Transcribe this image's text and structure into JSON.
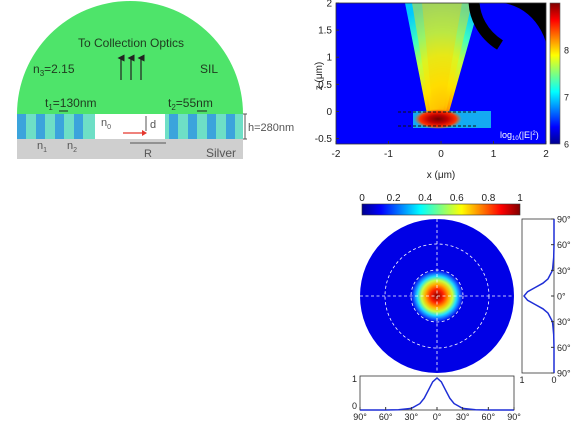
{
  "schematic": {
    "title": "To Collection Optics",
    "n3_label": "n",
    "n3_sub": "3",
    "n3_value": "=2.15",
    "sil_label": "SIL",
    "t1_label": "t",
    "t1_sub": "1",
    "t1_value": "=130nm",
    "t2_label": "t",
    "t2_sub": "2",
    "t2_value": "=55nm",
    "n0_label": "n",
    "n0_sub": "0",
    "d_label": "d",
    "h_label": "h=280nm",
    "n1_label": "n",
    "n1_sub": "1",
    "n2_label": "n",
    "n2_sub": "2",
    "R_label": "R",
    "silver_label": "Silver",
    "colors": {
      "sil": "#4ee46a",
      "n1": "#3ba4dc",
      "n2": "#6edfc6",
      "silver": "#cfcfcf",
      "arrow": "#e5372d"
    }
  },
  "chart_data": [
    {
      "type": "heatmap",
      "title": "",
      "xlabel": "x (μm)",
      "ylabel": "z (μm)",
      "x_ticks": [
        "-2",
        "-1",
        "0",
        "1",
        "2"
      ],
      "y_ticks": [
        "2",
        "1.5",
        "1",
        "0.5",
        "0",
        "-0.5"
      ],
      "xlim": [
        -2,
        2
      ],
      "ylim": [
        -0.6,
        2
      ],
      "colorbar_ticks": [
        "8",
        "7",
        "6"
      ],
      "colorbar_range": [
        6,
        9
      ],
      "colorbar_label": "log10(|E|2)",
      "colorbar_label_base": "log",
      "colorbar_label_sub": "10",
      "colorbar_label_rest": "(|E|",
      "colorbar_label_sup": "2",
      "colorbar_label_end": ")",
      "colormap": "jet"
    },
    {
      "type": "heatmap",
      "title": "",
      "colorbar_ticks": [
        "0",
        "0.2",
        "0.4",
        "0.6",
        "0.8",
        "1"
      ],
      "colorbar_range": [
        0,
        1
      ],
      "colormap": "jet",
      "polar_angles": [
        "90°",
        "60°",
        "30°",
        "0°",
        "30°",
        "60°",
        "90°"
      ]
    },
    {
      "type": "line",
      "orientation": "vertical",
      "y_ticks": [
        "90°",
        "60°",
        "30°",
        "0°",
        "30°",
        "60°",
        "90°"
      ],
      "x_ticks": [
        "1",
        "0"
      ],
      "series": [
        {
          "y": [
            -90,
            -60,
            -45,
            -30,
            -20,
            -15,
            -10,
            -5,
            0,
            5,
            10,
            15,
            20,
            30,
            45,
            60,
            90
          ],
          "values": [
            0,
            0,
            0.01,
            0.05,
            0.2,
            0.37,
            0.62,
            0.88,
            1,
            0.88,
            0.62,
            0.37,
            0.2,
            0.05,
            0.01,
            0,
            0
          ]
        }
      ],
      "color": "#1f2fd6"
    },
    {
      "type": "line",
      "x_ticks": [
        "90°",
        "60°",
        "30°",
        "0°",
        "30°",
        "60°",
        "90°"
      ],
      "y_ticks": [
        "1",
        "0"
      ],
      "series": [
        {
          "x": [
            -90,
            -60,
            -45,
            -30,
            -20,
            -15,
            -10,
            -5,
            0,
            5,
            10,
            15,
            20,
            30,
            45,
            60,
            90
          ],
          "values": [
            0,
            0,
            0.01,
            0.05,
            0.2,
            0.37,
            0.62,
            0.88,
            1,
            0.88,
            0.62,
            0.37,
            0.2,
            0.05,
            0.01,
            0,
            0
          ]
        }
      ],
      "color": "#1f2fd6"
    }
  ]
}
